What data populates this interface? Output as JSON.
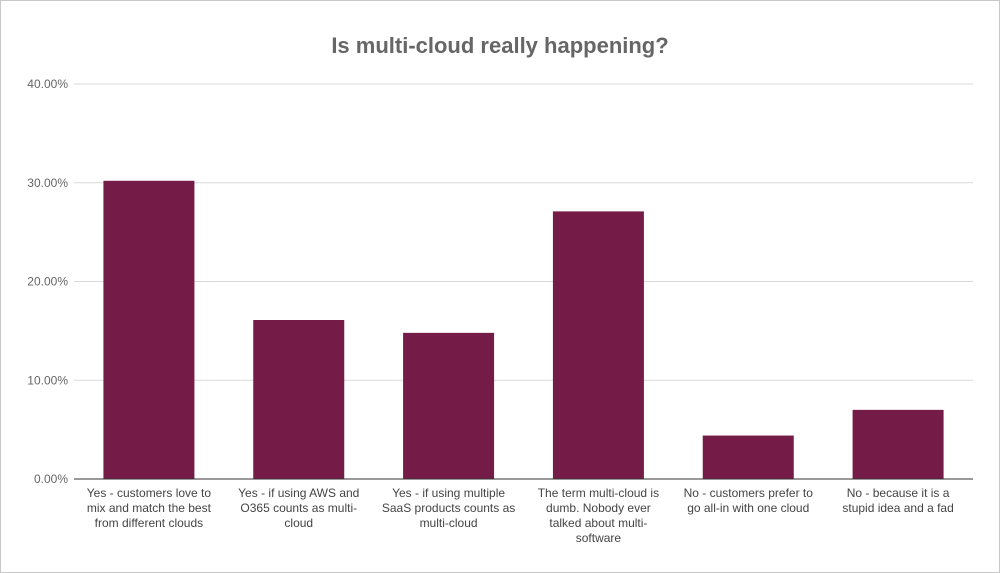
{
  "chart_data": {
    "type": "bar",
    "title": "Is multi-cloud really happening?",
    "xlabel": "",
    "ylabel": "",
    "categories": [
      [
        "Yes - customers love to",
        "mix and match the best",
        "from different clouds"
      ],
      [
        "Yes - if using AWS and",
        "O365 counts as multi-",
        "cloud"
      ],
      [
        "Yes - if using multiple",
        "SaaS products counts as",
        "multi-cloud"
      ],
      [
        "The term multi-cloud is",
        "dumb. Nobody ever",
        "talked about multi-",
        "software"
      ],
      [
        "No - customers prefer to",
        "go all-in with one cloud"
      ],
      [
        "No - because it is a",
        "stupid idea and a fad"
      ]
    ],
    "values": [
      30.2,
      16.1,
      14.8,
      27.1,
      4.4,
      7.0
    ],
    "ylim": [
      0,
      40
    ],
    "yticks": [
      0,
      10,
      20,
      30,
      40
    ],
    "ytick_labels": [
      "0.00%",
      "10.00%",
      "20.00%",
      "30.00%",
      "40.00%"
    ],
    "grid": true,
    "legend": "none",
    "colors": {
      "bar": "#741b47",
      "grid": "#d9d9d9",
      "axis": "#333333"
    }
  }
}
